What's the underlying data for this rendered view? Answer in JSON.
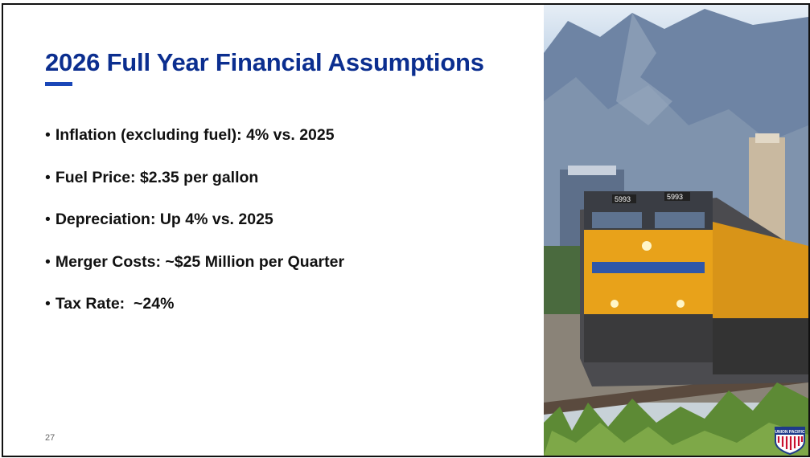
{
  "slide": {
    "title": "2026 Full Year Financial Assumptions",
    "bullets": [
      "Inflation (excluding fuel): 4% vs. 2025",
      "Fuel Price: $2.35 per gallon",
      "Depreciation: Up 4% vs. 2025",
      "Merger Costs: ~$25 Million per Quarter",
      "Tax Rate:  ~24%"
    ],
    "page_number": "27"
  },
  "photo": {
    "locomotive_numbers": [
      "5993",
      "5993"
    ],
    "logo": "UNION PACIFIC",
    "colors": {
      "locomotive": "#e8a21a",
      "title": "#0b2e8f",
      "accent": "#1a47b8"
    }
  }
}
